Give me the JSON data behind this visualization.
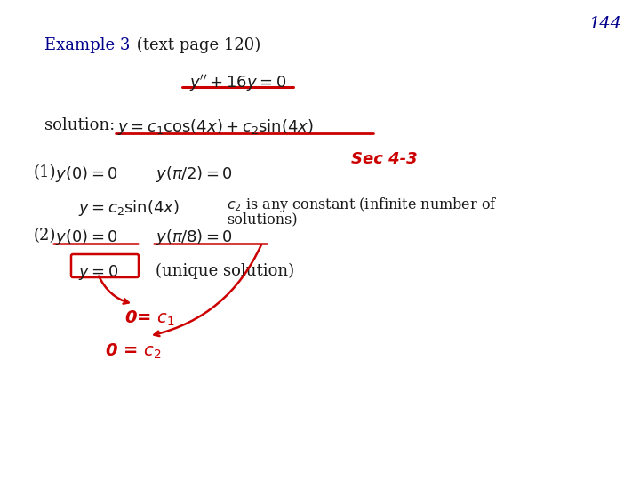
{
  "page_number": "144",
  "page_num_color": "#00008B",
  "background_color": "#FFFFFF",
  "example_text": "Example 3",
  "example_color": "#00008B",
  "subtitle_text": " (text page 120)",
  "black_color": "#1a1a1a",
  "red_color": "#CC0000",
  "equation_main": "$y^{\\prime\\prime}+16y=0$",
  "solution_label": "solution:",
  "solution_eq": "$y=c_1\\cos(4x)+c_2\\sin(4x)$",
  "label_1": "(1)",
  "cond1a": "$y(0)=0$",
  "cond1b": "$y(\\pi/2)=0$",
  "sec_annotation": "Sec 4-3",
  "result1": "$y=c_2\\sin(4x)$",
  "c2_text": "$c_2$ is any constant (infinite number of",
  "solutions_text": "solutions)",
  "label_2": "(2)",
  "cond2a": "$y(0)=0$",
  "cond2b": "$y(\\pi/8)=0$",
  "result2": "$y=0$",
  "unique_text": "(unique solution)",
  "annot1": "0= $c_1$",
  "annot2": "0 = $c_2$"
}
